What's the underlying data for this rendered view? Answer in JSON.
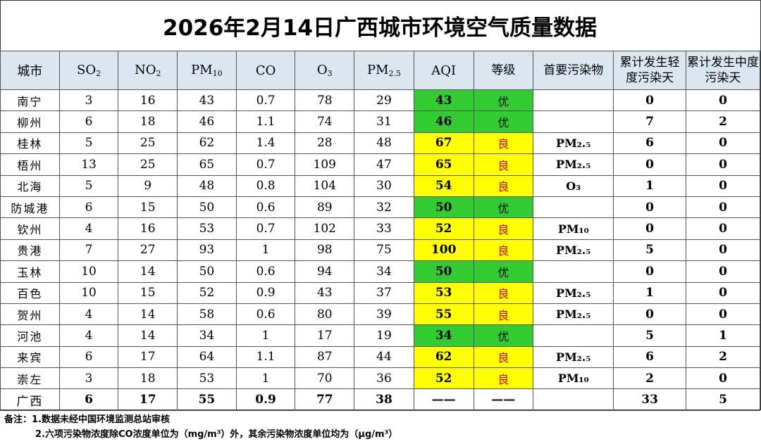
{
  "title": "2026年2月14日广西城市环境空气质量数据",
  "headers": {
    "city": "城市",
    "so2": "SO",
    "so2_sub": "2",
    "no2": "NO",
    "no2_sub": "2",
    "pm10": "PM",
    "pm10_sub": "10",
    "co": "CO",
    "o3": "O",
    "o3_sub": "3",
    "pm25": "PM",
    "pm25_sub": "2.5",
    "aqi": "AQI",
    "grade": "等级",
    "primary": "首要污染物",
    "light_days": "累计发生轻度污染天",
    "moderate_days": "累计发生中度污染天"
  },
  "rows": [
    {
      "city": "南宁",
      "so2": "3",
      "no2": "16",
      "pm10": "43",
      "co": "0.7",
      "o3": "78",
      "pm25": "29",
      "aqi": "43",
      "grade": "优",
      "primary": "",
      "light": "0",
      "moderate": "0"
    },
    {
      "city": "柳州",
      "so2": "6",
      "no2": "18",
      "pm10": "46",
      "co": "1.1",
      "o3": "74",
      "pm25": "31",
      "aqi": "46",
      "grade": "优",
      "primary": "",
      "light": "7",
      "moderate": "2"
    },
    {
      "city": "桂林",
      "so2": "5",
      "no2": "25",
      "pm10": "62",
      "co": "1.4",
      "o3": "28",
      "pm25": "48",
      "aqi": "67",
      "grade": "良",
      "primary": "PM₂.₅",
      "light": "6",
      "moderate": "0"
    },
    {
      "city": "梧州",
      "so2": "13",
      "no2": "25",
      "pm10": "65",
      "co": "0.7",
      "o3": "109",
      "pm25": "47",
      "aqi": "65",
      "grade": "良",
      "primary": "PM₂.₅",
      "light": "0",
      "moderate": "0"
    },
    {
      "city": "北海",
      "so2": "5",
      "no2": "9",
      "pm10": "48",
      "co": "0.8",
      "o3": "104",
      "pm25": "30",
      "aqi": "54",
      "grade": "良",
      "primary": "O₃",
      "light": "1",
      "moderate": "0"
    },
    {
      "city": "防城港",
      "so2": "6",
      "no2": "15",
      "pm10": "50",
      "co": "0.6",
      "o3": "89",
      "pm25": "32",
      "aqi": "50",
      "grade": "优",
      "primary": "",
      "light": "0",
      "moderate": "0"
    },
    {
      "city": "钦州",
      "so2": "4",
      "no2": "16",
      "pm10": "53",
      "co": "0.7",
      "o3": "102",
      "pm25": "33",
      "aqi": "52",
      "grade": "良",
      "primary": "PM₁₀",
      "light": "0",
      "moderate": "0"
    },
    {
      "city": "贵港",
      "so2": "7",
      "no2": "27",
      "pm10": "93",
      "co": "1",
      "o3": "98",
      "pm25": "75",
      "aqi": "100",
      "grade": "良",
      "primary": "PM₂.₅",
      "light": "5",
      "moderate": "0"
    },
    {
      "city": "玉林",
      "so2": "10",
      "no2": "14",
      "pm10": "50",
      "co": "0.6",
      "o3": "94",
      "pm25": "34",
      "aqi": "50",
      "grade": "优",
      "primary": "",
      "light": "0",
      "moderate": "0"
    },
    {
      "city": "百色",
      "so2": "10",
      "no2": "15",
      "pm10": "52",
      "co": "0.9",
      "o3": "43",
      "pm25": "37",
      "aqi": "53",
      "grade": "良",
      "primary": "PM₂.₅",
      "light": "1",
      "moderate": "0"
    },
    {
      "city": "贺州",
      "so2": "4",
      "no2": "14",
      "pm10": "58",
      "co": "0.6",
      "o3": "80",
      "pm25": "39",
      "aqi": "55",
      "grade": "良",
      "primary": "PM₂.₅",
      "light": "0",
      "moderate": "0"
    },
    {
      "city": "河池",
      "so2": "4",
      "no2": "14",
      "pm10": "34",
      "co": "1",
      "o3": "17",
      "pm25": "19",
      "aqi": "34",
      "grade": "优",
      "primary": "",
      "light": "5",
      "moderate": "1"
    },
    {
      "city": "来宾",
      "so2": "6",
      "no2": "17",
      "pm10": "64",
      "co": "1.1",
      "o3": "87",
      "pm25": "44",
      "aqi": "62",
      "grade": "良",
      "primary": "PM₂.₅",
      "light": "6",
      "moderate": "2"
    },
    {
      "city": "崇左",
      "so2": "3",
      "no2": "18",
      "pm10": "53",
      "co": "1",
      "o3": "70",
      "pm25": "36",
      "aqi": "52",
      "grade": "良",
      "primary": "PM₁₀",
      "light": "2",
      "moderate": "0"
    }
  ],
  "total": {
    "city": "广西",
    "so2": "6",
    "no2": "17",
    "pm10": "55",
    "co": "0.9",
    "o3": "77",
    "pm25": "38",
    "aqi": "——",
    "grade": "——",
    "primary": "",
    "light": "33",
    "moderate": "5"
  },
  "notes": {
    "label": "备注：",
    "line1": "1.数据未经中国环境监测总站审核",
    "line2": "2.六项污染物浓度除CO浓度单位为（mg/m³）外，其余污染物浓度单位均为（μg/m³）"
  },
  "colors": {
    "good": "#33cc33",
    "moderate": "#ffff00",
    "moderate_text": "#e00000",
    "header_bg": "#dce6f1"
  }
}
